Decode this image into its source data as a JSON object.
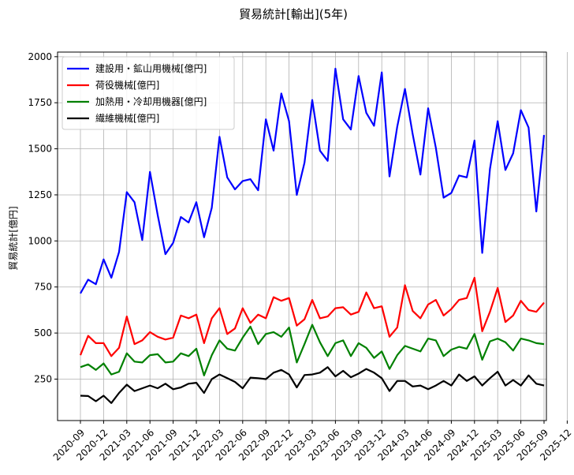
{
  "chart_data": {
    "type": "line",
    "title": "貿易統計[輸出](5年)",
    "xlabel": "",
    "ylabel": "貿易統計[億円]",
    "ylim": [
      25,
      2025
    ],
    "yticks": [
      250,
      500,
      750,
      1000,
      1250,
      1500,
      1750,
      2000
    ],
    "ytick_labels": [
      "250",
      "500",
      "750",
      "1000",
      "1250",
      "1500",
      "1750",
      "2000"
    ],
    "grid": true,
    "legend_position": "top-left",
    "xtick_labels": [
      "2020-09",
      "2020-12",
      "2021-03",
      "2021-06",
      "2021-09",
      "2021-12",
      "2022-03",
      "2022-06",
      "2022-09",
      "2022-12",
      "2023-03",
      "2023-06",
      "2023-09",
      "2023-12",
      "2024-03",
      "2024-06",
      "2024-09",
      "2024-12",
      "2025-03",
      "2025-06",
      "2025-09",
      "2025-12"
    ],
    "x_start": "2020-09",
    "x_unit": "month",
    "series": [
      {
        "name": "建設用・鉱山用機械[億円]",
        "color": "#0000ff",
        "values": [
          715,
          790,
          765,
          900,
          800,
          940,
          1265,
          1210,
          1005,
          1375,
          1140,
          928,
          990,
          1130,
          1100,
          1210,
          1020,
          1180,
          1565,
          1345,
          1280,
          1325,
          1335,
          1275,
          1660,
          1490,
          1800,
          1650,
          1250,
          1425,
          1765,
          1490,
          1435,
          1935,
          1660,
          1605,
          1895,
          1695,
          1625,
          1915,
          1350,
          1620,
          1825,
          1580,
          1360,
          1720,
          1505,
          1235,
          1260,
          1355,
          1345,
          1545,
          935,
          1390,
          1650,
          1385,
          1475,
          1710,
          1615,
          1160,
          1575
        ]
      },
      {
        "name": "荷役機械[億円]",
        "color": "#ff0000",
        "values": [
          380,
          485,
          445,
          445,
          375,
          420,
          590,
          440,
          460,
          505,
          480,
          465,
          475,
          595,
          580,
          600,
          445,
          580,
          635,
          495,
          525,
          635,
          555,
          600,
          580,
          695,
          675,
          690,
          540,
          575,
          680,
          580,
          590,
          635,
          640,
          600,
          615,
          720,
          635,
          645,
          480,
          530,
          760,
          620,
          580,
          655,
          680,
          595,
          630,
          680,
          690,
          800,
          510,
          615,
          745,
          560,
          595,
          675,
          625,
          615,
          665
        ]
      },
      {
        "name": "加熱用・冷却用機器[億円]",
        "color": "#008000",
        "values": [
          315,
          330,
          300,
          335,
          275,
          290,
          390,
          345,
          340,
          380,
          385,
          340,
          345,
          390,
          375,
          415,
          270,
          380,
          460,
          415,
          405,
          475,
          535,
          440,
          495,
          505,
          480,
          530,
          340,
          440,
          545,
          450,
          375,
          445,
          460,
          375,
          445,
          420,
          365,
          400,
          305,
          380,
          430,
          415,
          400,
          470,
          460,
          375,
          410,
          425,
          415,
          495,
          355,
          455,
          470,
          450,
          405,
          470,
          460,
          445,
          440
        ]
      },
      {
        "name": "繊維機械[億円]",
        "color": "#000000",
        "values": [
          160,
          158,
          130,
          160,
          120,
          175,
          220,
          185,
          200,
          215,
          200,
          225,
          195,
          205,
          225,
          230,
          175,
          250,
          275,
          255,
          235,
          200,
          258,
          255,
          250,
          285,
          300,
          275,
          205,
          272,
          275,
          285,
          315,
          265,
          295,
          260,
          280,
          305,
          285,
          255,
          185,
          240,
          240,
          210,
          215,
          195,
          215,
          240,
          215,
          275,
          240,
          265,
          215,
          255,
          290,
          215,
          245,
          215,
          270,
          225,
          215
        ]
      }
    ]
  }
}
